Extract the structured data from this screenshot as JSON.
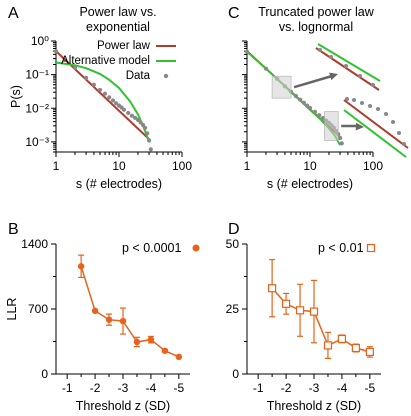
{
  "colors": {
    "power_law": "#b33a2c",
    "alternative": "#2ec42e",
    "data": "#888888",
    "orange": "#e8621a",
    "inset_box": "#d0d0d0",
    "arrow": "#666666"
  },
  "panels": {
    "A": {
      "letter": "A",
      "title_line1": "Power law vs.",
      "title_line2": "exponential"
    },
    "B": {
      "letter": "B",
      "pvalue": "p < 0.0001"
    },
    "C": {
      "letter": "C",
      "title_line1": "Truncated power law",
      "title_line2": "vs. lognormal"
    },
    "D": {
      "letter": "D",
      "pvalue": "p < 0.01"
    }
  },
  "legend": {
    "power_law": "Power law",
    "alternative": "Alternative model",
    "data": "Data"
  },
  "chart_data": [
    {
      "id": "A",
      "type": "line",
      "xscale": "log",
      "yscale": "log",
      "xlim": [
        1,
        100
      ],
      "ylim": [
        0.0005,
        1
      ],
      "xticks": [
        {
          "v": 1,
          "label": "1"
        },
        {
          "v": 10,
          "label": "10"
        },
        {
          "v": 100,
          "label": "100"
        }
      ],
      "yticks": [
        {
          "v": 1,
          "label": "10⁰"
        },
        {
          "v": 0.1,
          "label": "10⁻¹"
        },
        {
          "v": 0.01,
          "label": "10⁻²"
        },
        {
          "v": 0.001,
          "label": "10⁻³"
        }
      ],
      "xlabel": "s (# electrodes)",
      "ylabel": "P(s)",
      "series": [
        {
          "name": "Power law",
          "style": "line",
          "color": "power_law",
          "x": [
            1,
            30
          ],
          "y": [
            0.5,
            0.0012
          ]
        },
        {
          "name": "Alternative model",
          "style": "line",
          "color": "alternative",
          "x": [
            1,
            2,
            3,
            5,
            7,
            10,
            15,
            20,
            25,
            30
          ],
          "y": [
            0.23,
            0.19,
            0.155,
            0.105,
            0.07,
            0.04,
            0.016,
            0.0065,
            0.0025,
            0.001
          ]
        },
        {
          "name": "Data",
          "style": "points",
          "color": "data",
          "x": [
            1,
            2,
            3,
            4,
            5,
            6,
            7,
            8,
            9,
            10,
            11,
            12,
            14,
            16,
            18,
            20,
            22,
            24,
            26,
            28,
            30,
            32
          ],
          "y": [
            0.5,
            0.16,
            0.08,
            0.05,
            0.035,
            0.027,
            0.021,
            0.017,
            0.014,
            0.012,
            0.0105,
            0.009,
            0.0072,
            0.006,
            0.0052,
            0.0045,
            0.0038,
            0.0032,
            0.0026,
            0.0018,
            0.0011,
            0.0006
          ]
        }
      ]
    },
    {
      "id": "C",
      "type": "line",
      "xscale": "log",
      "yscale": "log",
      "xlim": [
        1,
        100
      ],
      "ylim": [
        0.0005,
        1
      ],
      "xticks": [
        {
          "v": 1,
          "label": "1"
        },
        {
          "v": 10,
          "label": "10"
        },
        {
          "v": 100,
          "label": "100"
        }
      ],
      "xlabel": "s (# electrodes)",
      "series": [
        {
          "name": "Power law",
          "style": "line",
          "color": "power_law",
          "x": [
            1,
            30
          ],
          "y": [
            0.5,
            0.0014
          ]
        },
        {
          "name": "Alternative model",
          "style": "line",
          "color": "alternative",
          "x": [
            1,
            2,
            3,
            5,
            7,
            10,
            15,
            20,
            25,
            30
          ],
          "y": [
            0.48,
            0.15,
            0.075,
            0.03,
            0.017,
            0.009,
            0.0045,
            0.0025,
            0.0015,
            0.0008
          ]
        },
        {
          "name": "Data",
          "style": "points",
          "color": "data",
          "x": [
            1,
            2,
            3,
            4,
            5,
            6,
            7,
            8,
            9,
            10,
            12,
            14,
            16,
            18,
            20,
            22,
            24,
            26,
            28,
            30,
            32
          ],
          "y": [
            0.48,
            0.15,
            0.075,
            0.045,
            0.031,
            0.023,
            0.018,
            0.0145,
            0.012,
            0.0102,
            0.0078,
            0.0062,
            0.0051,
            0.0043,
            0.0037,
            0.0031,
            0.0026,
            0.0021,
            0.0017,
            0.0013,
            0.0009
          ]
        }
      ]
    },
    {
      "id": "B",
      "type": "line",
      "xlim": [
        -0.6,
        -5.4
      ],
      "ylim": [
        0,
        1400
      ],
      "xticks": [
        {
          "v": -1,
          "label": "-1"
        },
        {
          "v": -2,
          "label": "-2"
        },
        {
          "v": -3,
          "label": "-3"
        },
        {
          "v": -4,
          "label": "-4"
        },
        {
          "v": -5,
          "label": "-5"
        }
      ],
      "yticks": [
        {
          "v": 0,
          "label": "0"
        },
        {
          "v": 700,
          "label": "700"
        },
        {
          "v": 1400,
          "label": "1400"
        }
      ],
      "xlabel": "Threshold z (SD)",
      "ylabel": "LLR",
      "series": [
        {
          "name": "p < 0.0001",
          "marker": "filled-circle",
          "x": [
            -1.5,
            -2,
            -2.5,
            -3,
            -3.5,
            -4,
            -4.5,
            -5
          ],
          "y": [
            1160,
            680,
            585,
            570,
            345,
            370,
            250,
            185
          ],
          "err": [
            120,
            0,
            60,
            140,
            50,
            35,
            15,
            0
          ]
        }
      ]
    },
    {
      "id": "D",
      "type": "line",
      "xlim": [
        -0.6,
        -5.4
      ],
      "ylim": [
        0,
        50
      ],
      "xticks": [
        {
          "v": -1,
          "label": "-1"
        },
        {
          "v": -2,
          "label": "-2"
        },
        {
          "v": -3,
          "label": "-3"
        },
        {
          "v": -4,
          "label": "-4"
        },
        {
          "v": -5,
          "label": "-5"
        }
      ],
      "yticks": [
        {
          "v": 0,
          "label": "0"
        },
        {
          "v": 25,
          "label": "25"
        },
        {
          "v": 50,
          "label": "50"
        }
      ],
      "xlabel": "Threshold z (SD)",
      "series": [
        {
          "name": "p < 0.01",
          "marker": "open-square",
          "x": [
            -1.5,
            -2,
            -2.5,
            -3,
            -3.5,
            -4,
            -4.5,
            -5
          ],
          "y": [
            33,
            27,
            24.5,
            24,
            11,
            13.5,
            10,
            8.5
          ],
          "err": [
            11,
            4,
            10,
            12,
            5,
            1.5,
            1.5,
            2
          ]
        }
      ]
    }
  ]
}
